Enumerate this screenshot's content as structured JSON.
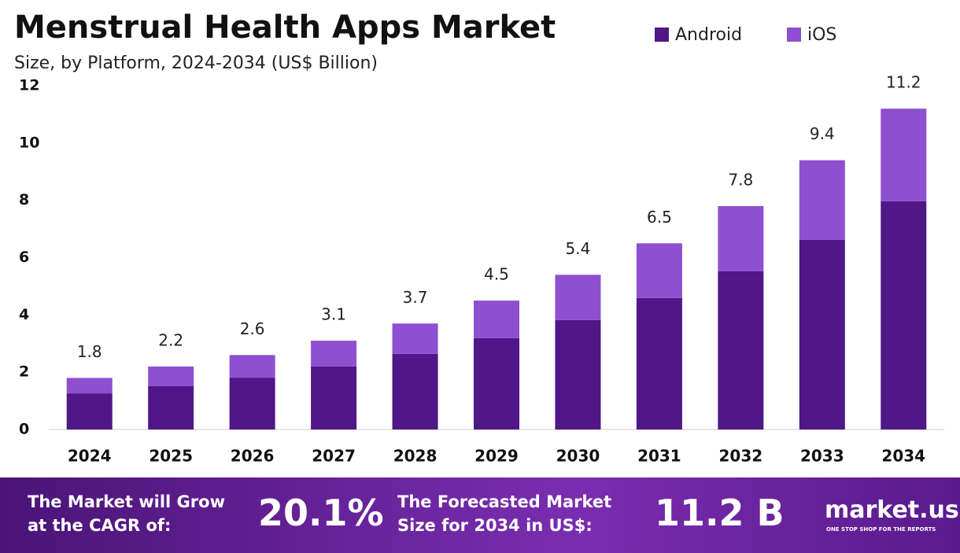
{
  "chart_data": {
    "type": "stacked_bar",
    "title": "Menstrual Health Apps Market",
    "subtitle": "Size, by Platform, 2024-2034 (US$ Billion)",
    "categories": [
      "2024",
      "2025",
      "2026",
      "2027",
      "2028",
      "2029",
      "2030",
      "2031",
      "2032",
      "2033",
      "2034"
    ],
    "series": [
      {
        "name": "Android",
        "color": "#4f1787",
        "values": [
          1.26,
          1.51,
          1.81,
          2.2,
          2.64,
          3.19,
          3.82,
          4.59,
          5.52,
          6.62,
          7.97
        ]
      },
      {
        "name": "iOS",
        "color": "#8e4fd1",
        "values": [
          0.54,
          0.69,
          0.79,
          0.9,
          1.06,
          1.31,
          1.58,
          1.91,
          2.28,
          2.78,
          3.23
        ]
      }
    ],
    "totals": [
      1.8,
      2.2,
      2.6,
      3.1,
      3.7,
      4.5,
      5.4,
      6.5,
      7.8,
      9.4,
      11.2
    ],
    "ylim": [
      0,
      12
    ],
    "yticks": [
      0,
      2,
      4,
      6,
      8,
      10,
      12
    ],
    "grid": false,
    "legend": "top-right"
  },
  "footer": {
    "cagr_text": [
      "The Market will Grow",
      "at the CAGR of:"
    ],
    "cagr": "20.1%",
    "forecast_text": [
      "The Forecasted Market",
      "Size for 2034 in US$:"
    ],
    "forecast": "11.2 B",
    "brand": "market.us",
    "tagline": "ONE STOP SHOP FOR THE REPORTS"
  }
}
